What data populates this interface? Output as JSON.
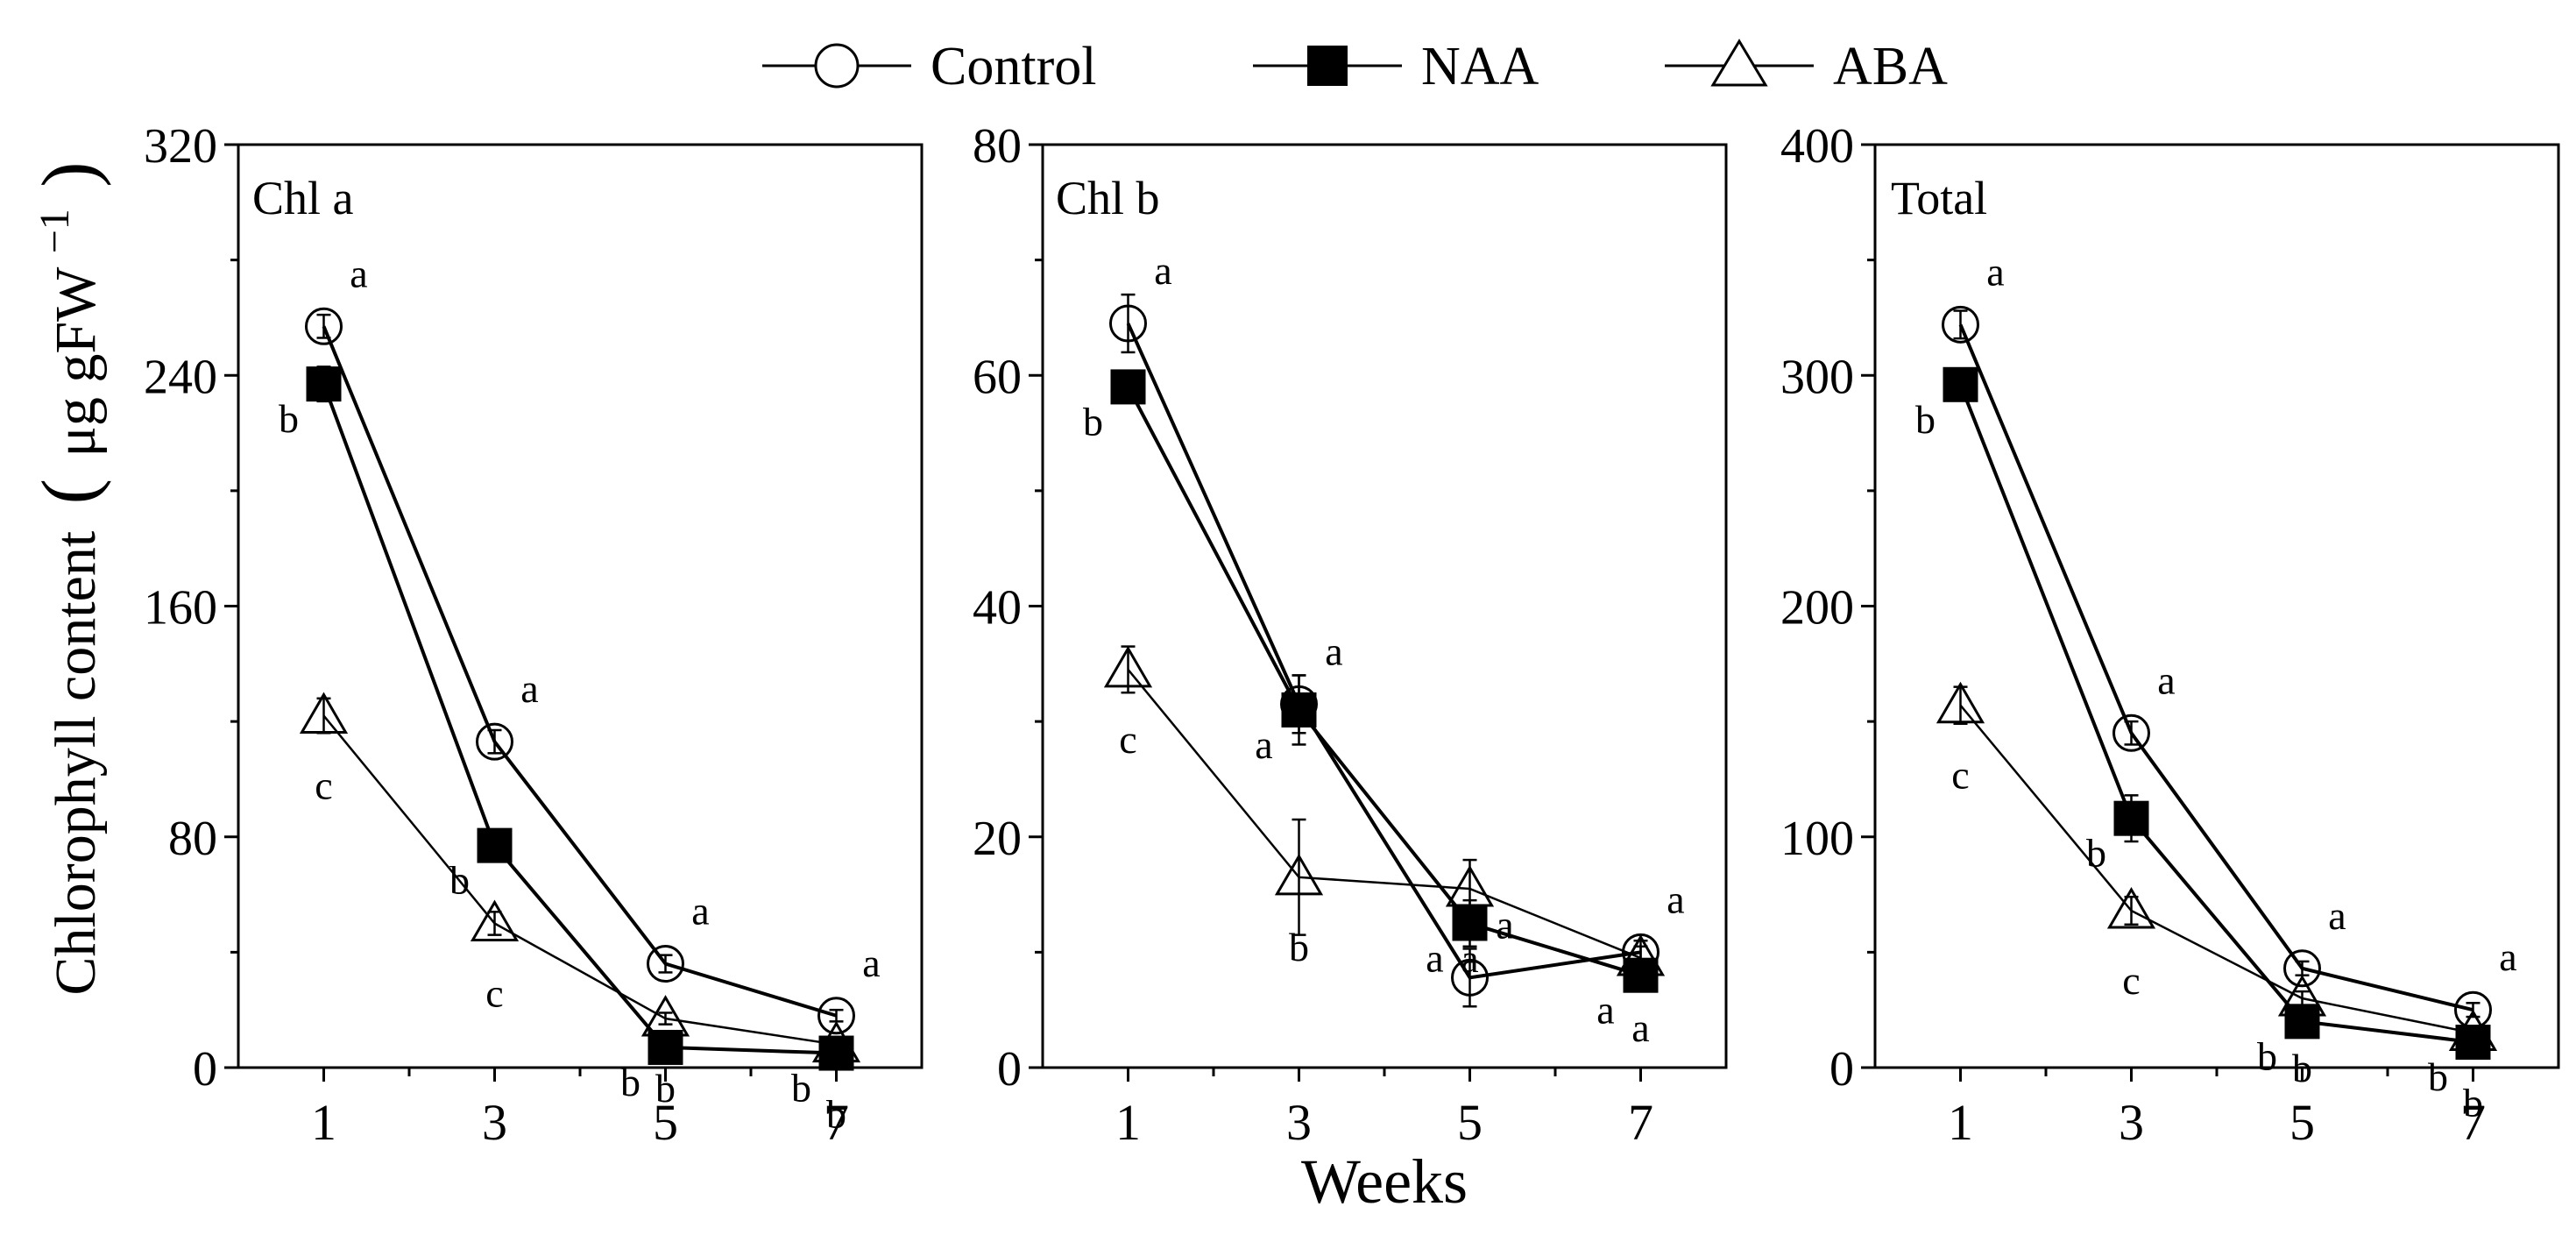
{
  "legend": {
    "position": "top-center",
    "entries": [
      {
        "name": "Control",
        "marker": "open-circle"
      },
      {
        "name": "NAA",
        "marker": "filled-square"
      },
      {
        "name": "ABA",
        "marker": "open-triangle"
      }
    ]
  },
  "figure": {
    "ylabel_main": "Chlorophyll content",
    "ylabel_unit_open": "(",
    "ylabel_unit": "μg gFW",
    "ylabel_unit_exp": "−1",
    "ylabel_unit_close": ")",
    "xlabel": "Weeks"
  },
  "chart_data": [
    {
      "type": "line",
      "title": "Chl a",
      "xlabel": "Weeks",
      "ylabel": "Chlorophyll content (μg gFW−1)",
      "x": [
        1,
        3,
        5,
        7
      ],
      "xlim": [
        0,
        8
      ],
      "ylim": [
        0,
        320
      ],
      "yticks": [
        0,
        80,
        160,
        240,
        320
      ],
      "series": [
        {
          "name": "Control",
          "values": [
            257,
            113,
            36,
            18
          ],
          "errors": [
            4,
            4,
            3,
            2
          ],
          "letters": [
            "a",
            "a",
            "a",
            "a"
          ]
        },
        {
          "name": "NAA",
          "values": [
            237,
            77,
            7,
            5
          ],
          "errors": [
            6,
            5,
            1,
            1
          ],
          "letters": [
            "b",
            "b",
            "b",
            "b"
          ]
        },
        {
          "name": "ABA",
          "values": [
            122,
            50,
            17,
            8
          ],
          "errors": [
            6,
            4,
            2,
            2
          ],
          "letters": [
            "c",
            "c",
            "b",
            "b"
          ]
        }
      ]
    },
    {
      "type": "line",
      "title": "Chl b",
      "xlabel": "Weeks",
      "ylabel": "Chlorophyll content (μg gFW−1)",
      "x": [
        1,
        3,
        5,
        7
      ],
      "xlim": [
        0,
        8
      ],
      "ylim": [
        0,
        80
      ],
      "yticks": [
        0,
        20,
        40,
        60,
        80
      ],
      "series": [
        {
          "name": "Control",
          "values": [
            64.5,
            31.5,
            7.8,
            10
          ],
          "errors": [
            2.5,
            2.5,
            2.5,
            1
          ],
          "letters": [
            "a",
            "a",
            "a",
            "a"
          ]
        },
        {
          "name": "NAA",
          "values": [
            59,
            31,
            12.5,
            8
          ],
          "errors": [
            1,
            3,
            2,
            1
          ],
          "letters": [
            "b",
            "a",
            "a",
            "a"
          ]
        },
        {
          "name": "ABA",
          "values": [
            34.5,
            16.5,
            15.5,
            9.5
          ],
          "errors": [
            2,
            5,
            2.5,
            1
          ],
          "letters": [
            "c",
            "b",
            "a",
            "a"
          ]
        }
      ]
    },
    {
      "type": "line",
      "title": "Total",
      "xlabel": "Weeks",
      "ylabel": "Chlorophyll content (μg gFW−1)",
      "x": [
        1,
        3,
        5,
        7
      ],
      "xlim": [
        0,
        8
      ],
      "ylim": [
        0,
        400
      ],
      "yticks": [
        0,
        100,
        200,
        300,
        400
      ],
      "series": [
        {
          "name": "Control",
          "values": [
            322,
            145,
            43,
            25
          ],
          "errors": [
            6,
            5,
            3,
            3
          ],
          "letters": [
            "a",
            "a",
            "a",
            "a"
          ]
        },
        {
          "name": "NAA",
          "values": [
            296,
            108,
            20,
            11
          ],
          "errors": [
            7,
            10,
            2,
            2
          ],
          "letters": [
            "b",
            "b",
            "b",
            "b"
          ]
        },
        {
          "name": "ABA",
          "values": [
            157,
            68,
            30,
            15
          ],
          "errors": [
            8,
            6,
            3,
            3
          ],
          "letters": [
            "c",
            "c",
            "b",
            "b"
          ]
        }
      ]
    }
  ]
}
